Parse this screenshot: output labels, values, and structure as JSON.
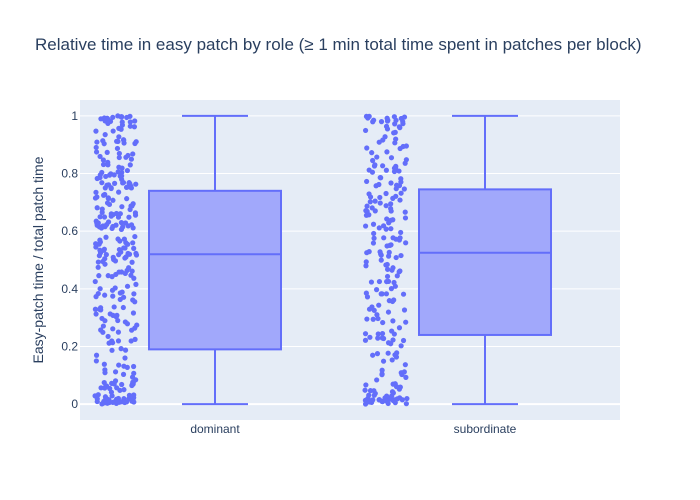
{
  "chart_data": {
    "type": "box",
    "title": "Relative time in easy patch by role (≥ 1 min total time spent in patches per block)",
    "xlabel": "",
    "ylabel": "Easy-patch time / total patch time",
    "ylim": [
      -0.055,
      1.055
    ],
    "y_ticks": [
      0,
      0.2,
      0.4,
      0.6,
      0.8,
      1
    ],
    "y_tick_labels": [
      "0",
      "0.2",
      "0.4",
      "0.6",
      "0.8",
      "1"
    ],
    "categories": [
      "dominant",
      "subordinate"
    ],
    "grid": true,
    "legend": "none",
    "colors": {
      "box_line": "#636efa",
      "box_fill": "#a1a8fb",
      "points": "#636efa",
      "plot_bg": "#e5ecf6",
      "grid": "#ffffff",
      "text": "#2a3f5f"
    },
    "series": [
      {
        "category": "dominant",
        "min": 0,
        "q1": 0.19,
        "median": 0.52,
        "q3": 0.74,
        "max": 1,
        "point_density": [
          [
            0.0,
            32
          ],
          [
            0.05,
            22
          ],
          [
            0.1,
            10
          ],
          [
            0.15,
            8
          ],
          [
            0.2,
            9
          ],
          [
            0.25,
            9
          ],
          [
            0.3,
            11
          ],
          [
            0.35,
            12
          ],
          [
            0.4,
            10
          ],
          [
            0.45,
            14
          ],
          [
            0.5,
            18
          ],
          [
            0.55,
            20
          ],
          [
            0.6,
            17
          ],
          [
            0.65,
            18
          ],
          [
            0.7,
            16
          ],
          [
            0.75,
            20
          ],
          [
            0.8,
            16
          ],
          [
            0.85,
            14
          ],
          [
            0.9,
            12
          ],
          [
            0.95,
            10
          ],
          [
            1.0,
            18
          ]
        ]
      },
      {
        "category": "subordinate",
        "min": 0,
        "q1": 0.24,
        "median": 0.525,
        "q3": 0.745,
        "max": 1,
        "point_density": [
          [
            0.0,
            26
          ],
          [
            0.05,
            16
          ],
          [
            0.1,
            8
          ],
          [
            0.15,
            6
          ],
          [
            0.2,
            9
          ],
          [
            0.25,
            10
          ],
          [
            0.3,
            8
          ],
          [
            0.35,
            9
          ],
          [
            0.4,
            10
          ],
          [
            0.45,
            10
          ],
          [
            0.5,
            10
          ],
          [
            0.55,
            11
          ],
          [
            0.6,
            12
          ],
          [
            0.65,
            12
          ],
          [
            0.7,
            13
          ],
          [
            0.75,
            12
          ],
          [
            0.8,
            10
          ],
          [
            0.85,
            10
          ],
          [
            0.9,
            9
          ],
          [
            0.95,
            10
          ],
          [
            1.0,
            14
          ]
        ]
      }
    ]
  }
}
